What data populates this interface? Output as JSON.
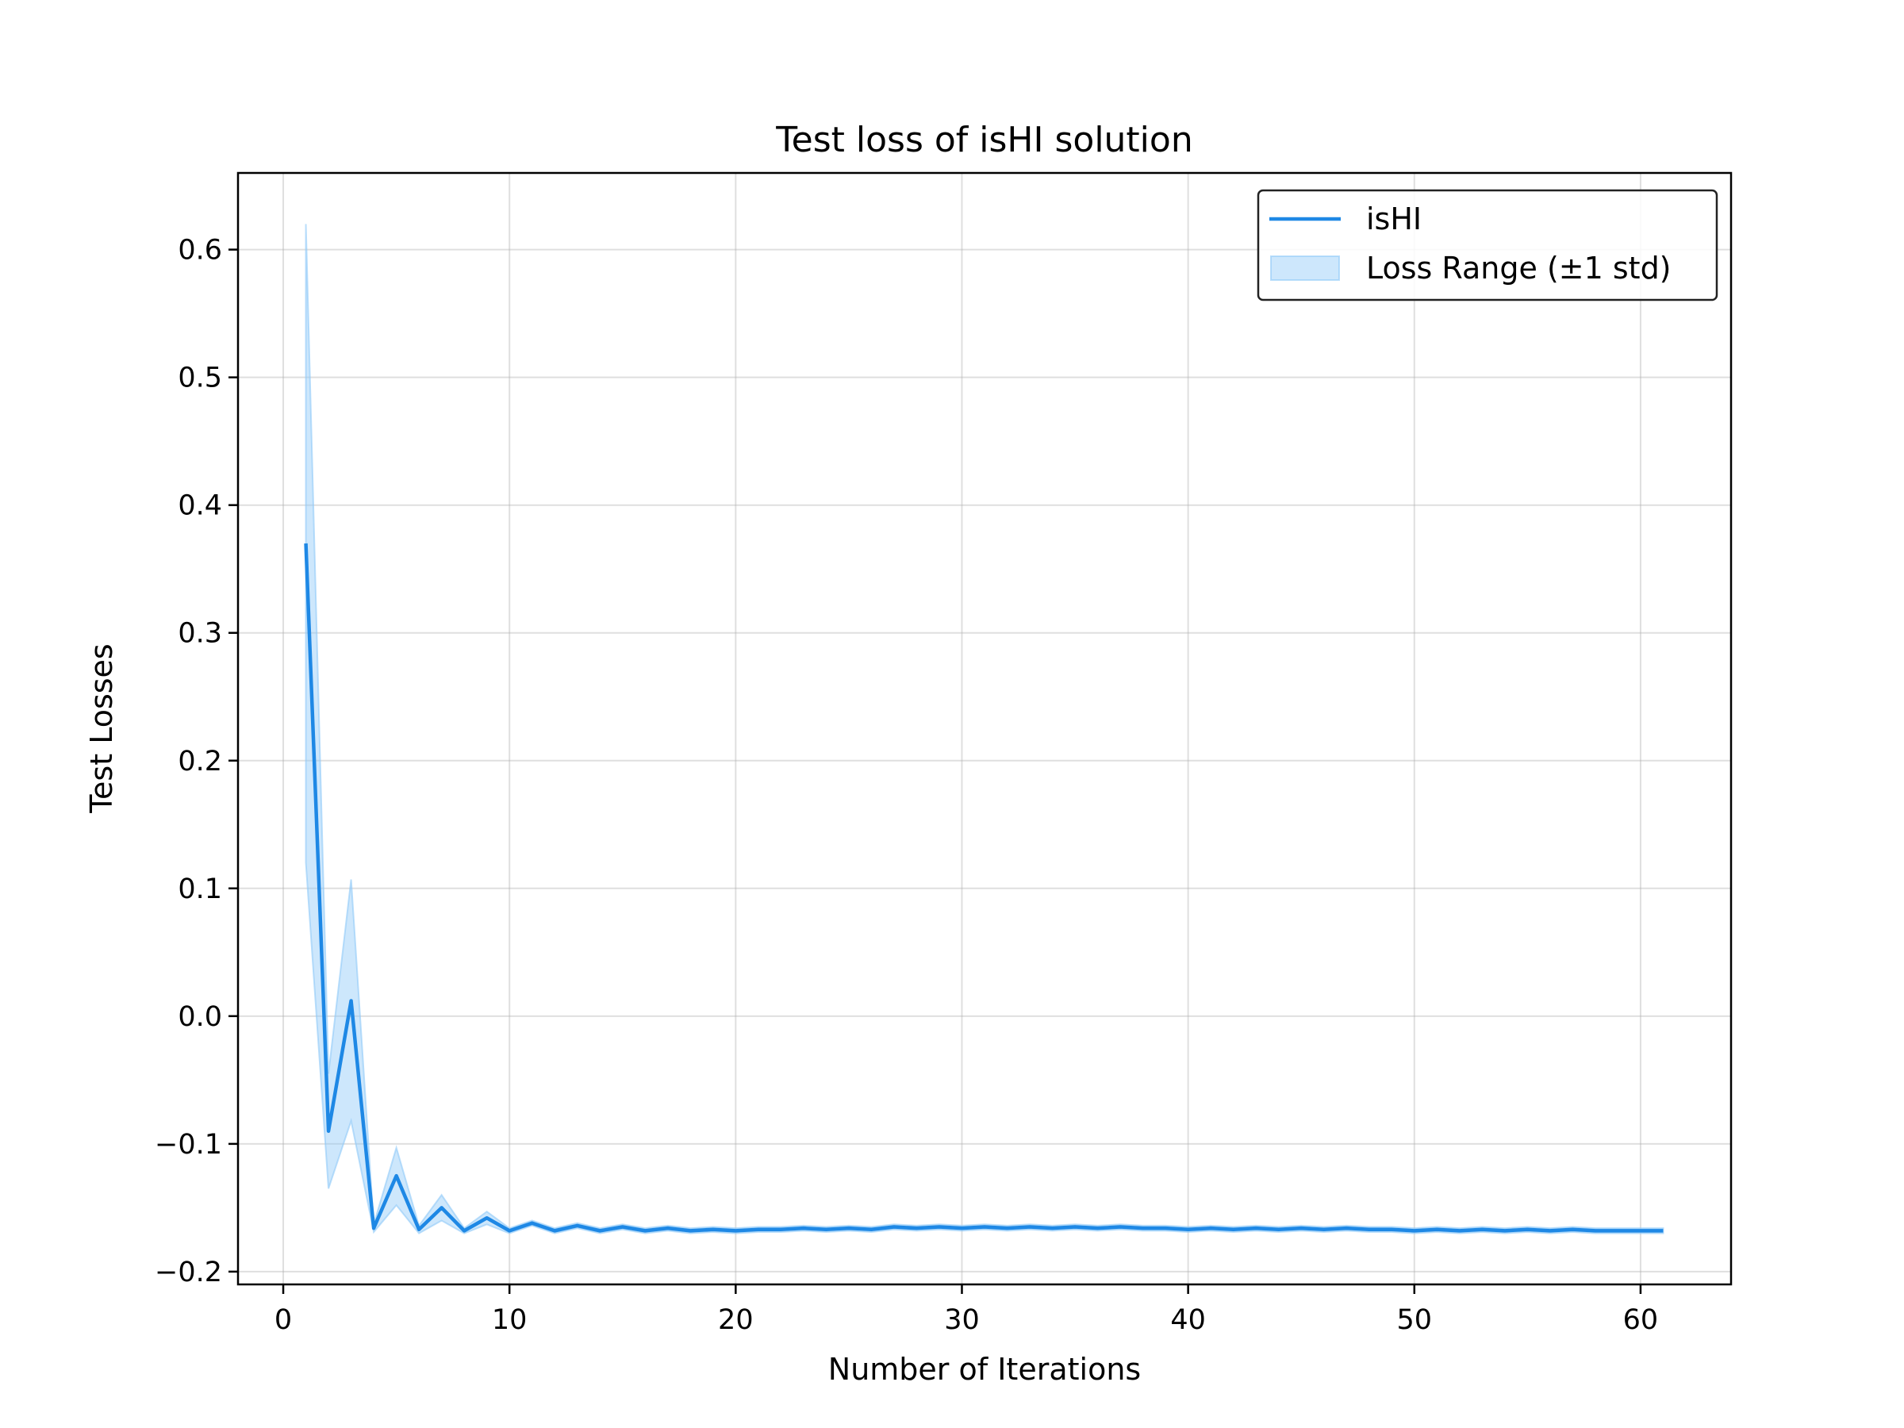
{
  "chart_data": {
    "type": "line",
    "title": "Test loss of isHI solution",
    "xlabel": "Number of Iterations",
    "ylabel": "Test Losses",
    "xlim": [
      -2,
      64
    ],
    "ylim": [
      -0.21,
      0.66
    ],
    "xticks": [
      0,
      10,
      20,
      30,
      40,
      50,
      60
    ],
    "xtick_labels": [
      "0",
      "10",
      "20",
      "30",
      "40",
      "50",
      "60"
    ],
    "yticks": [
      -0.2,
      -0.1,
      0.0,
      0.1,
      0.2,
      0.3,
      0.4,
      0.5,
      0.6
    ],
    "ytick_labels": [
      "−0.2",
      "−0.1",
      "0.0",
      "0.1",
      "0.2",
      "0.3",
      "0.4",
      "0.5",
      "0.6"
    ],
    "grid": true,
    "legend_position": "top-right",
    "x": [
      1,
      2,
      3,
      4,
      5,
      6,
      7,
      8,
      9,
      10,
      11,
      12,
      13,
      14,
      15,
      16,
      17,
      18,
      19,
      20,
      21,
      22,
      23,
      24,
      25,
      26,
      27,
      28,
      29,
      30,
      31,
      32,
      33,
      34,
      35,
      36,
      37,
      38,
      39,
      40,
      41,
      42,
      43,
      44,
      45,
      46,
      47,
      48,
      49,
      50,
      51,
      52,
      53,
      54,
      55,
      56,
      57,
      58,
      59,
      60,
      61
    ],
    "series": [
      {
        "name": "isHI",
        "color": "#1e88e5",
        "values": [
          0.37,
          -0.09,
          0.012,
          -0.166,
          -0.125,
          -0.167,
          -0.15,
          -0.168,
          -0.158,
          -0.168,
          -0.162,
          -0.168,
          -0.164,
          -0.168,
          -0.165,
          -0.168,
          -0.166,
          -0.168,
          -0.167,
          -0.168,
          -0.167,
          -0.167,
          -0.166,
          -0.167,
          -0.166,
          -0.167,
          -0.165,
          -0.166,
          -0.165,
          -0.166,
          -0.165,
          -0.166,
          -0.165,
          -0.166,
          -0.165,
          -0.166,
          -0.165,
          -0.166,
          -0.166,
          -0.167,
          -0.166,
          -0.167,
          -0.166,
          -0.167,
          -0.166,
          -0.167,
          -0.166,
          -0.167,
          -0.167,
          -0.168,
          -0.167,
          -0.168,
          -0.167,
          -0.168,
          -0.167,
          -0.168,
          -0.167,
          -0.168,
          -0.168,
          -0.168,
          -0.168
        ]
      }
    ],
    "band": {
      "name": "Loss Range (±1 std)",
      "color": "#90caf9",
      "upper": [
        0.62,
        -0.045,
        0.107,
        -0.163,
        -0.103,
        -0.164,
        -0.14,
        -0.166,
        -0.153,
        -0.166,
        -0.16,
        -0.166,
        -0.162,
        -0.166,
        -0.163,
        -0.166,
        -0.164,
        -0.166,
        -0.165,
        -0.166,
        -0.165,
        -0.165,
        -0.164,
        -0.165,
        -0.164,
        -0.165,
        -0.163,
        -0.164,
        -0.163,
        -0.164,
        -0.163,
        -0.164,
        -0.163,
        -0.164,
        -0.163,
        -0.164,
        -0.163,
        -0.164,
        -0.164,
        -0.165,
        -0.164,
        -0.165,
        -0.164,
        -0.165,
        -0.164,
        -0.165,
        -0.164,
        -0.165,
        -0.165,
        -0.166,
        -0.165,
        -0.166,
        -0.165,
        -0.166,
        -0.165,
        -0.166,
        -0.165,
        -0.166,
        -0.166,
        -0.166,
        -0.166
      ],
      "lower": [
        0.12,
        -0.135,
        -0.082,
        -0.169,
        -0.148,
        -0.17,
        -0.16,
        -0.17,
        -0.163,
        -0.17,
        -0.164,
        -0.17,
        -0.166,
        -0.17,
        -0.167,
        -0.17,
        -0.168,
        -0.17,
        -0.169,
        -0.17,
        -0.169,
        -0.169,
        -0.168,
        -0.169,
        -0.168,
        -0.169,
        -0.167,
        -0.168,
        -0.167,
        -0.168,
        -0.167,
        -0.168,
        -0.167,
        -0.168,
        -0.167,
        -0.168,
        -0.167,
        -0.168,
        -0.168,
        -0.169,
        -0.168,
        -0.169,
        -0.168,
        -0.169,
        -0.168,
        -0.169,
        -0.168,
        -0.169,
        -0.169,
        -0.17,
        -0.169,
        -0.17,
        -0.169,
        -0.17,
        -0.169,
        -0.17,
        -0.169,
        -0.17,
        -0.17,
        -0.17,
        -0.17
      ]
    }
  }
}
